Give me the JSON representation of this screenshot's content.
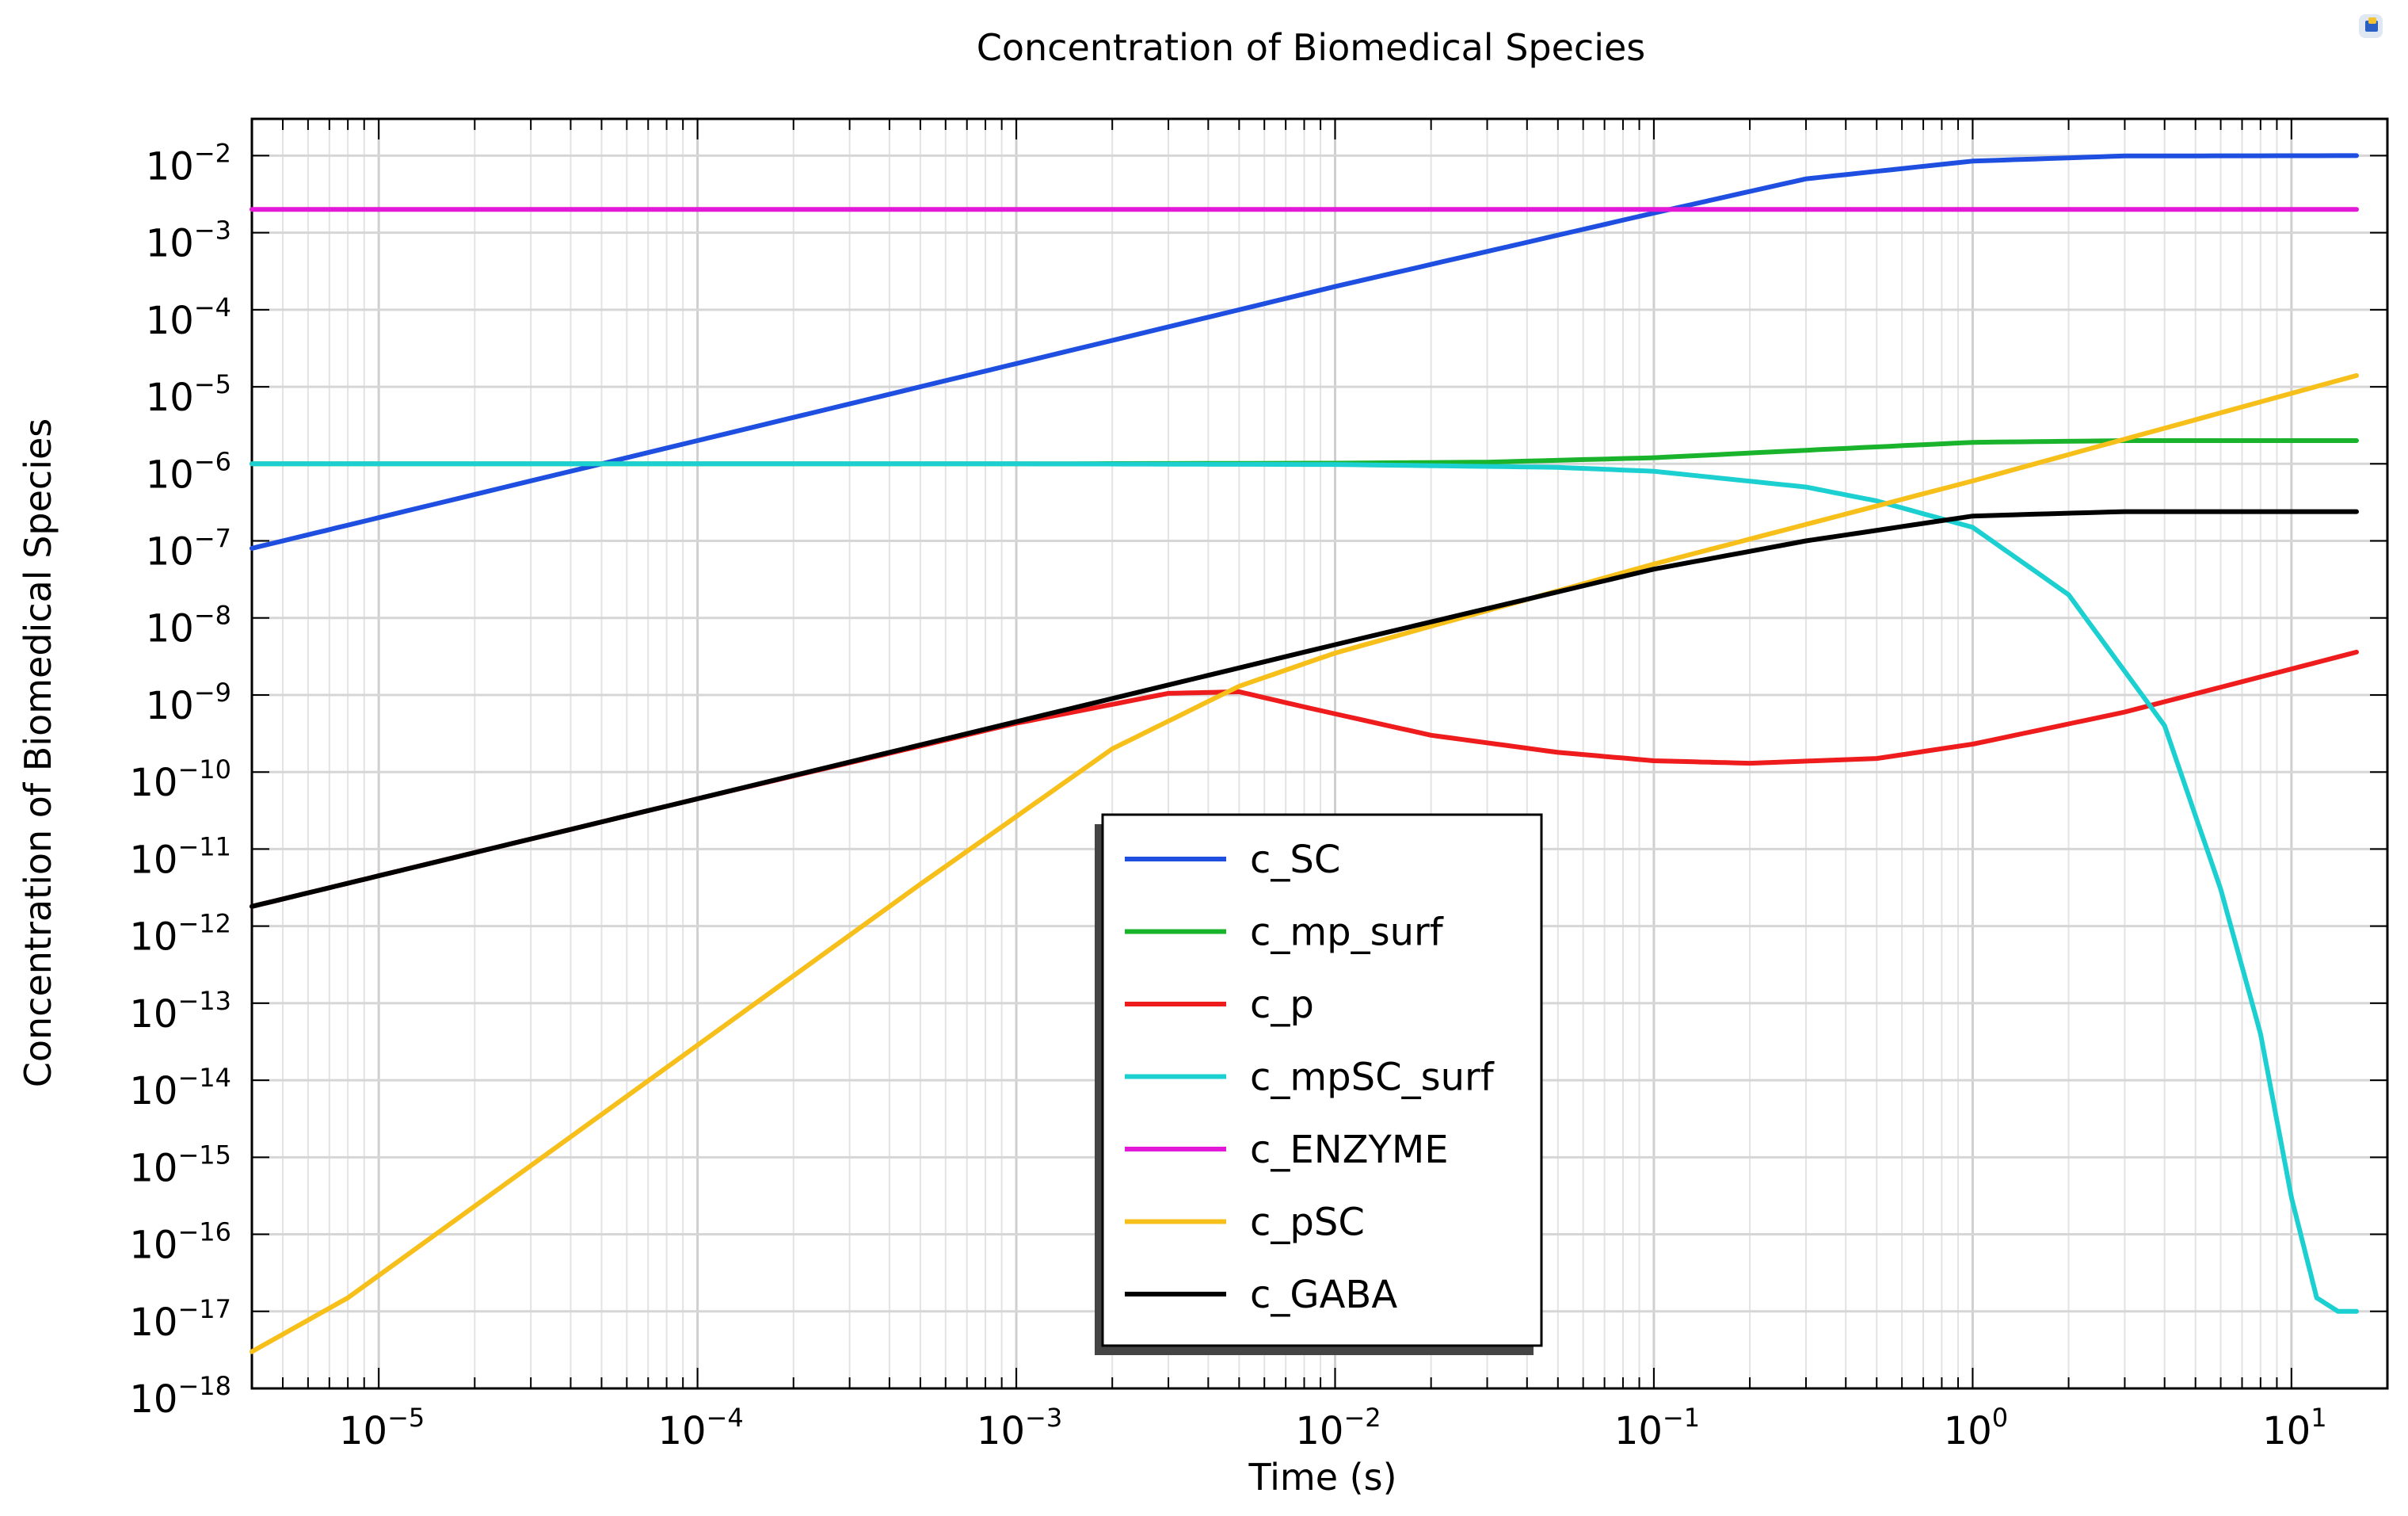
{
  "chart_data": {
    "type": "line",
    "title": "Concentration of Biomedical Species",
    "xlabel": "Time (s)",
    "ylabel": "Concentration of Biomedical Species",
    "xscale": "log",
    "yscale": "log",
    "xlim": [
      4e-06,
      20
    ],
    "ylim": [
      1e-18,
      0.03
    ],
    "grid": true,
    "legend_position": "center",
    "x_ticks": [
      {
        "base": "10",
        "exp": "−5",
        "value": 1e-05
      },
      {
        "base": "10",
        "exp": "−4",
        "value": 0.0001
      },
      {
        "base": "10",
        "exp": "−3",
        "value": 0.001
      },
      {
        "base": "10",
        "exp": "−2",
        "value": 0.01
      },
      {
        "base": "10",
        "exp": "−1",
        "value": 0.1
      },
      {
        "base": "10",
        "exp": "0",
        "value": 1
      },
      {
        "base": "10",
        "exp": "1",
        "value": 10
      }
    ],
    "y_ticks": [
      {
        "base": "10",
        "exp": "−2",
        "value": 0.01
      },
      {
        "base": "10",
        "exp": "−3",
        "value": 0.001
      },
      {
        "base": "10",
        "exp": "−4",
        "value": 0.0001
      },
      {
        "base": "10",
        "exp": "−5",
        "value": 1e-05
      },
      {
        "base": "10",
        "exp": "−6",
        "value": 1e-06
      },
      {
        "base": "10",
        "exp": "−7",
        "value": 1e-07
      },
      {
        "base": "10",
        "exp": "−8",
        "value": 1e-08
      },
      {
        "base": "10",
        "exp": "−9",
        "value": 1e-09
      },
      {
        "base": "10",
        "exp": "−10",
        "value": 1e-10
      },
      {
        "base": "10",
        "exp": "−11",
        "value": 1e-11
      },
      {
        "base": "10",
        "exp": "−12",
        "value": 1e-12
      },
      {
        "base": "10",
        "exp": "−13",
        "value": 1e-13
      },
      {
        "base": "10",
        "exp": "−14",
        "value": 1e-14
      },
      {
        "base": "10",
        "exp": "−15",
        "value": 1e-15
      },
      {
        "base": "10",
        "exp": "−16",
        "value": 1e-16
      },
      {
        "base": "10",
        "exp": "−17",
        "value": 1e-17
      },
      {
        "base": "10",
        "exp": "−18",
        "value": 1e-18
      }
    ],
    "series": [
      {
        "name": "c_SC",
        "color": "#1f4fe0",
        "x": [
          4e-06,
          1e-05,
          0.0001,
          0.001,
          0.01,
          0.1,
          0.3,
          1,
          3,
          16
        ],
        "y": [
          8e-08,
          2e-07,
          2e-06,
          2e-05,
          0.0002,
          0.0018,
          0.005,
          0.0085,
          0.0099,
          0.01
        ]
      },
      {
        "name": "c_mp_surf",
        "color": "#19b42c",
        "x": [
          4e-06,
          0.001,
          0.01,
          0.03,
          0.1,
          0.3,
          1,
          3,
          16
        ],
        "y": [
          1e-06,
          1e-06,
          1.02e-06,
          1.05e-06,
          1.2e-06,
          1.5e-06,
          1.9e-06,
          2e-06,
          2e-06
        ]
      },
      {
        "name": "c_p",
        "color": "#ee1c1c",
        "x": [
          4e-06,
          1e-05,
          0.0001,
          0.001,
          0.003,
          0.005,
          0.008,
          0.02,
          0.05,
          0.1,
          0.2,
          0.5,
          1,
          3,
          16
        ],
        "y": [
          1.8e-12,
          4.5e-12,
          4.5e-11,
          4.3e-10,
          1.05e-09,
          1.1e-09,
          7e-10,
          3e-10,
          1.8e-10,
          1.4e-10,
          1.3e-10,
          1.5e-10,
          2.3e-10,
          6e-10,
          3.6e-09
        ]
      },
      {
        "name": "c_mpSC_surf",
        "color": "#1ccfd0",
        "x": [
          4e-06,
          0.001,
          0.01,
          0.05,
          0.1,
          0.3,
          0.5,
          1,
          2,
          4,
          6,
          8,
          10,
          12,
          14,
          16
        ],
        "y": [
          1e-06,
          1e-06,
          9.8e-07,
          9e-07,
          8e-07,
          5e-07,
          3.3e-07,
          1.5e-07,
          2e-08,
          4e-10,
          3e-12,
          4e-14,
          3e-16,
          1.5e-17,
          1e-17,
          1e-17
        ]
      },
      {
        "name": "c_ENZYME",
        "color": "#e21ad8",
        "x": [
          4e-06,
          16
        ],
        "y": [
          0.002,
          0.002
        ]
      },
      {
        "name": "c_pSC",
        "color": "#f7bf1a",
        "x": [
          4e-06,
          8e-06,
          0.0005,
          0.002,
          0.005,
          0.01,
          0.1,
          1,
          16
        ],
        "y": [
          3e-18,
          1.5e-17,
          3.5e-12,
          2e-10,
          1.3e-09,
          3.5e-09,
          5e-08,
          6e-07,
          1.4e-05
        ]
      },
      {
        "name": "c_GABA",
        "color": "#000000",
        "x": [
          4e-06,
          1e-05,
          0.0001,
          0.001,
          0.01,
          0.1,
          0.3,
          1,
          3,
          16
        ],
        "y": [
          1.8e-12,
          4.5e-12,
          4.5e-11,
          4.5e-10,
          4.5e-09,
          4.3e-08,
          1e-07,
          2.1e-07,
          2.4e-07,
          2.4e-07
        ]
      }
    ]
  }
}
